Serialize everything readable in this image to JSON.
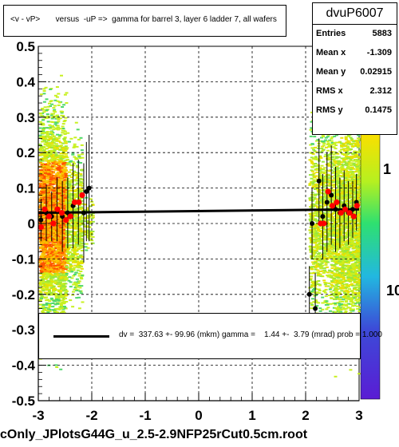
{
  "title": "<v - vP>       versus  -uP =>  gamma for barrel 3, layer 6 ladder 7, all wafers",
  "stats": {
    "name": "dvuP6007",
    "rows": [
      {
        "key": "Entries",
        "value": "5883"
      },
      {
        "key": "Mean x",
        "value": "-1.309"
      },
      {
        "key": "Mean y",
        "value": "0.02915"
      },
      {
        "key": "RMS x",
        "value": "2.312"
      },
      {
        "key": "RMS y",
        "value": "0.1475"
      }
    ]
  },
  "fit_text": "dv =  337.63 +- 99.96 (mkm) gamma =    1.44 +-  3.79 (mrad) prob = 1.000",
  "footer": "cOnly_JPlotsG44G_u_2.5-2.9NFP25rCut0.5cm.root",
  "colorbar": {
    "labels": [
      "10",
      "1",
      "10"
    ]
  },
  "chart_data": {
    "type": "scatter",
    "xlim": [
      -3,
      3
    ],
    "ylim": [
      -0.5,
      0.5
    ],
    "xticks": [
      "-3",
      "-2",
      "-1",
      "0",
      "1",
      "2",
      "3"
    ],
    "yticks": [
      "-0.5",
      "-0.4",
      "-0.3",
      "-0.2",
      "-0.1",
      "0",
      "0.1",
      "0.2",
      "0.3",
      "0.4",
      "0.5"
    ],
    "grid": true,
    "fit_line": {
      "x": [
        -3,
        3
      ],
      "y": [
        0.03,
        0.04
      ]
    },
    "black_points": [
      {
        "x": -2.95,
        "y": 0.01,
        "err": 0.06
      },
      {
        "x": -2.85,
        "y": 0.03,
        "err": 0.08
      },
      {
        "x": -2.75,
        "y": 0.02,
        "err": 0.07
      },
      {
        "x": -2.65,
        "y": 0.04,
        "err": 0.09
      },
      {
        "x": -2.55,
        "y": 0.02,
        "err": 0.1
      },
      {
        "x": -2.45,
        "y": 0.03,
        "err": 0.1
      },
      {
        "x": -2.35,
        "y": 0.05,
        "err": 0.12
      },
      {
        "x": -2.25,
        "y": 0.06,
        "err": 0.12
      },
      {
        "x": -2.15,
        "y": 0.03,
        "err": 0.14
      },
      {
        "x": -2.05,
        "y": 0.1,
        "err": 0.15
      },
      {
        "x": -2.1,
        "y": 0.09,
        "err": 0.14
      },
      {
        "x": 2.07,
        "y": -0.2,
        "err": 0.08
      },
      {
        "x": 2.12,
        "y": 0.0,
        "err": 0.1
      },
      {
        "x": 2.18,
        "y": -0.24,
        "err": 0.1
      },
      {
        "x": 2.25,
        "y": 0.12,
        "err": 0.12
      },
      {
        "x": 2.32,
        "y": 0.02,
        "err": 0.12
      },
      {
        "x": 2.4,
        "y": 0.06,
        "err": 0.14
      },
      {
        "x": 2.48,
        "y": 0.08,
        "err": 0.14
      },
      {
        "x": 2.56,
        "y": 0.04,
        "err": 0.12
      },
      {
        "x": 2.64,
        "y": 0.03,
        "err": 0.1
      },
      {
        "x": 2.72,
        "y": 0.05,
        "err": 0.1
      },
      {
        "x": 2.8,
        "y": 0.03,
        "err": 0.09
      },
      {
        "x": 2.88,
        "y": 0.04,
        "err": 0.08
      },
      {
        "x": 2.95,
        "y": 0.06,
        "err": 0.08
      }
    ],
    "red_points": [
      {
        "x": -2.95,
        "y": -0.01
      },
      {
        "x": -2.88,
        "y": 0.04
      },
      {
        "x": -2.8,
        "y": 0.02
      },
      {
        "x": -2.72,
        "y": 0.0
      },
      {
        "x": -2.64,
        "y": 0.04
      },
      {
        "x": -2.56,
        "y": 0.03
      },
      {
        "x": -2.48,
        "y": 0.01
      },
      {
        "x": -2.4,
        "y": 0.02
      },
      {
        "x": -2.32,
        "y": 0.06
      },
      {
        "x": -2.24,
        "y": 0.06
      },
      {
        "x": -2.18,
        "y": 0.08
      },
      {
        "x": 2.28,
        "y": 0.0
      },
      {
        "x": 2.34,
        "y": 0.0
      },
      {
        "x": 2.42,
        "y": 0.09
      },
      {
        "x": 2.5,
        "y": 0.05
      },
      {
        "x": 2.58,
        "y": 0.06
      },
      {
        "x": 2.66,
        "y": 0.03
      },
      {
        "x": 2.74,
        "y": 0.04
      },
      {
        "x": 2.82,
        "y": 0.03
      },
      {
        "x": 2.9,
        "y": 0.02
      },
      {
        "x": 2.96,
        "y": 0.05
      }
    ],
    "density_bands": [
      {
        "x_from": -3.0,
        "x_to": -2.5,
        "y_from": -0.45,
        "y_to": 0.45,
        "level": 0.95
      },
      {
        "x_from": -2.5,
        "x_to": -2.2,
        "y_from": -0.3,
        "y_to": 0.3,
        "level": 0.55
      },
      {
        "x_from": -2.2,
        "x_to": -2.0,
        "y_from": -0.1,
        "y_to": 0.1,
        "level": 0.3
      },
      {
        "x_from": 2.05,
        "x_to": 2.5,
        "y_from": -0.4,
        "y_to": 0.4,
        "level": 0.45
      },
      {
        "x_from": 2.5,
        "x_to": 3.0,
        "y_from": -0.45,
        "y_to": 0.45,
        "level": 0.75
      }
    ]
  }
}
